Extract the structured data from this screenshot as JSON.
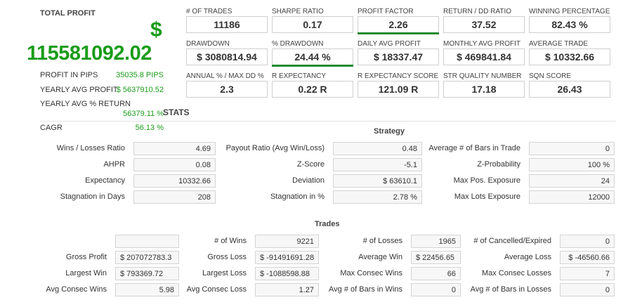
{
  "summary": {
    "total_label": "TOTAL PROFIT",
    "currency_symbol": "$",
    "total_value": "115581092.02",
    "rows": [
      {
        "label": "PROFIT IN PIPS",
        "value": "35035.8 PIPS"
      },
      {
        "label": "YEARLY AVG PROFIT",
        "value": "$ 5637910.52"
      },
      {
        "label": "YEARLY AVG % RETURN",
        "value": "56379.11 %"
      },
      {
        "label": "CAGR",
        "value": "56.13 %"
      }
    ]
  },
  "metrics": [
    {
      "label": "# OF TRADES",
      "value": "11186"
    },
    {
      "label": "SHARPE RATIO",
      "value": "0.17"
    },
    {
      "label": "PROFIT FACTOR",
      "value": "2.26",
      "bar_fraction": 1.0
    },
    {
      "label": "RETURN / DD RATIO",
      "value": "37.52"
    },
    {
      "label": "WINNING PERCENTAGE",
      "value": "82.43 %"
    },
    {
      "label": "DRAWDOWN",
      "value": "$ 3080814.94"
    },
    {
      "label": "% DRAWDOWN",
      "value": "24.44 %",
      "bar_fraction": 1.0
    },
    {
      "label": "DAILY AVG PROFIT",
      "value": "$ 18337.47"
    },
    {
      "label": "MONTHLY AVG PROFIT",
      "value": "$ 469841.84"
    },
    {
      "label": "AVERAGE TRADE",
      "value": "$ 10332.66"
    },
    {
      "label": "ANNUAL % / MAX DD %",
      "value": "2.3"
    },
    {
      "label": "R EXPECTANCY",
      "value": "0.22 R"
    },
    {
      "label": "R EXPECTANCY SCORE",
      "value": "121.09 R"
    },
    {
      "label": "STR QUALITY NUMBER",
      "value": "17.18"
    },
    {
      "label": "SQN SCORE",
      "value": "26.43"
    }
  ],
  "stats_title": "STATS",
  "strategy": {
    "title": "Strategy",
    "rows": [
      [
        {
          "label": "Wins / Losses Ratio",
          "value": "4.69"
        },
        {
          "label": "Payout Ratio (Avg Win/Loss)",
          "value": "0.48"
        },
        {
          "label": "Average # of Bars in Trade",
          "value": "0"
        }
      ],
      [
        {
          "label": "AHPR",
          "value": "0.08"
        },
        {
          "label": "Z-Score",
          "value": "-5.1"
        },
        {
          "label": "Z-Probability",
          "value": "100 %"
        }
      ],
      [
        {
          "label": "Expectancy",
          "value": "10332.66"
        },
        {
          "label": "Deviation",
          "value": "$ 63610.1"
        },
        {
          "label": "Max Pos. Exposure",
          "value": "24"
        }
      ],
      [
        {
          "label": "Stagnation in Days",
          "value": "208"
        },
        {
          "label": "Stagnation in %",
          "value": "2.78 %"
        },
        {
          "label": "Max Lots Exposure",
          "value": "12000"
        }
      ]
    ]
  },
  "trades": {
    "title": "Trades",
    "rows": [
      [
        {
          "label": "",
          "value": ""
        },
        {
          "label": "# of Wins",
          "value": "9221"
        },
        {
          "label": "# of Losses",
          "value": "1965"
        },
        {
          "label": "# of Cancelled/Expired",
          "value": "0"
        }
      ],
      [
        {
          "label": "Gross Profit",
          "value": "$ 207072783.3"
        },
        {
          "label": "Gross Loss",
          "value": "$ -91491691.28"
        },
        {
          "label": "Average Win",
          "value": "$ 22456.65"
        },
        {
          "label": "Average Loss",
          "value": "$ -46560.66"
        }
      ],
      [
        {
          "label": "Largest Win",
          "value": "$ 793369.72"
        },
        {
          "label": "Largest Loss",
          "value": "$ -1088598.88"
        },
        {
          "label": "Max Consec Wins",
          "value": "66"
        },
        {
          "label": "Max Consec Losses",
          "value": "7"
        }
      ],
      [
        {
          "label": "Avg Consec Wins",
          "value": "5.98"
        },
        {
          "label": "Avg Consec Loss",
          "value": "1.27"
        },
        {
          "label": "Avg # of Bars in Wins",
          "value": "0"
        },
        {
          "label": "Avg # of Bars in Losses",
          "value": "0"
        }
      ]
    ]
  }
}
